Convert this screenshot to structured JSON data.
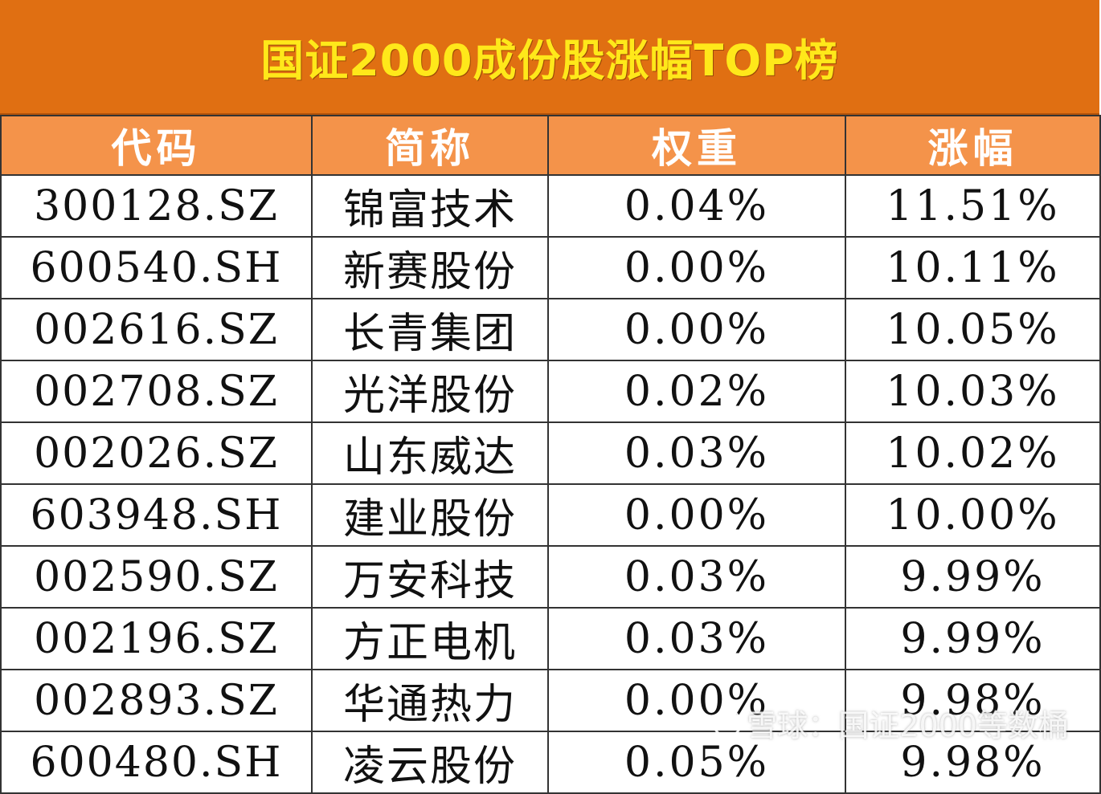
{
  "title": "国证2000成份股涨幅TOP榜",
  "columns": [
    "代码",
    "简称",
    "权重",
    "涨幅"
  ],
  "rows": [
    {
      "code": "300128.SZ",
      "name": "锦富技术",
      "weight": "0.04%",
      "change": "11.51%"
    },
    {
      "code": "600540.SH",
      "name": "新赛股份",
      "weight": "0.00%",
      "change": "10.11%"
    },
    {
      "code": "002616.SZ",
      "name": "长青集团",
      "weight": "0.00%",
      "change": "10.05%"
    },
    {
      "code": "002708.SZ",
      "name": "光洋股份",
      "weight": "0.02%",
      "change": "10.03%"
    },
    {
      "code": "002026.SZ",
      "name": "山东威达",
      "weight": "0.03%",
      "change": "10.02%"
    },
    {
      "code": "603948.SH",
      "name": "建业股份",
      "weight": "0.00%",
      "change": "10.00%"
    },
    {
      "code": "002590.SZ",
      "name": "万安科技",
      "weight": "0.03%",
      "change": "9.99%"
    },
    {
      "code": "002196.SZ",
      "name": "方正电机",
      "weight": "0.03%",
      "change": "9.99%"
    },
    {
      "code": "002893.SZ",
      "name": "华通热力",
      "weight": "0.00%",
      "change": "9.98%"
    },
    {
      "code": "600480.SH",
      "name": "凌云股份",
      "weight": "0.05%",
      "change": "9.98%"
    }
  ],
  "watermark": {
    "text": "雪球：国证2000等数桶",
    "icon": "snowball-logo-icon"
  },
  "colors": {
    "title_bg": "#e06f12",
    "title_text": "#ffe81a",
    "header_bg": "#f4934a",
    "header_text": "#ffffff",
    "grid_line": "#333333"
  }
}
